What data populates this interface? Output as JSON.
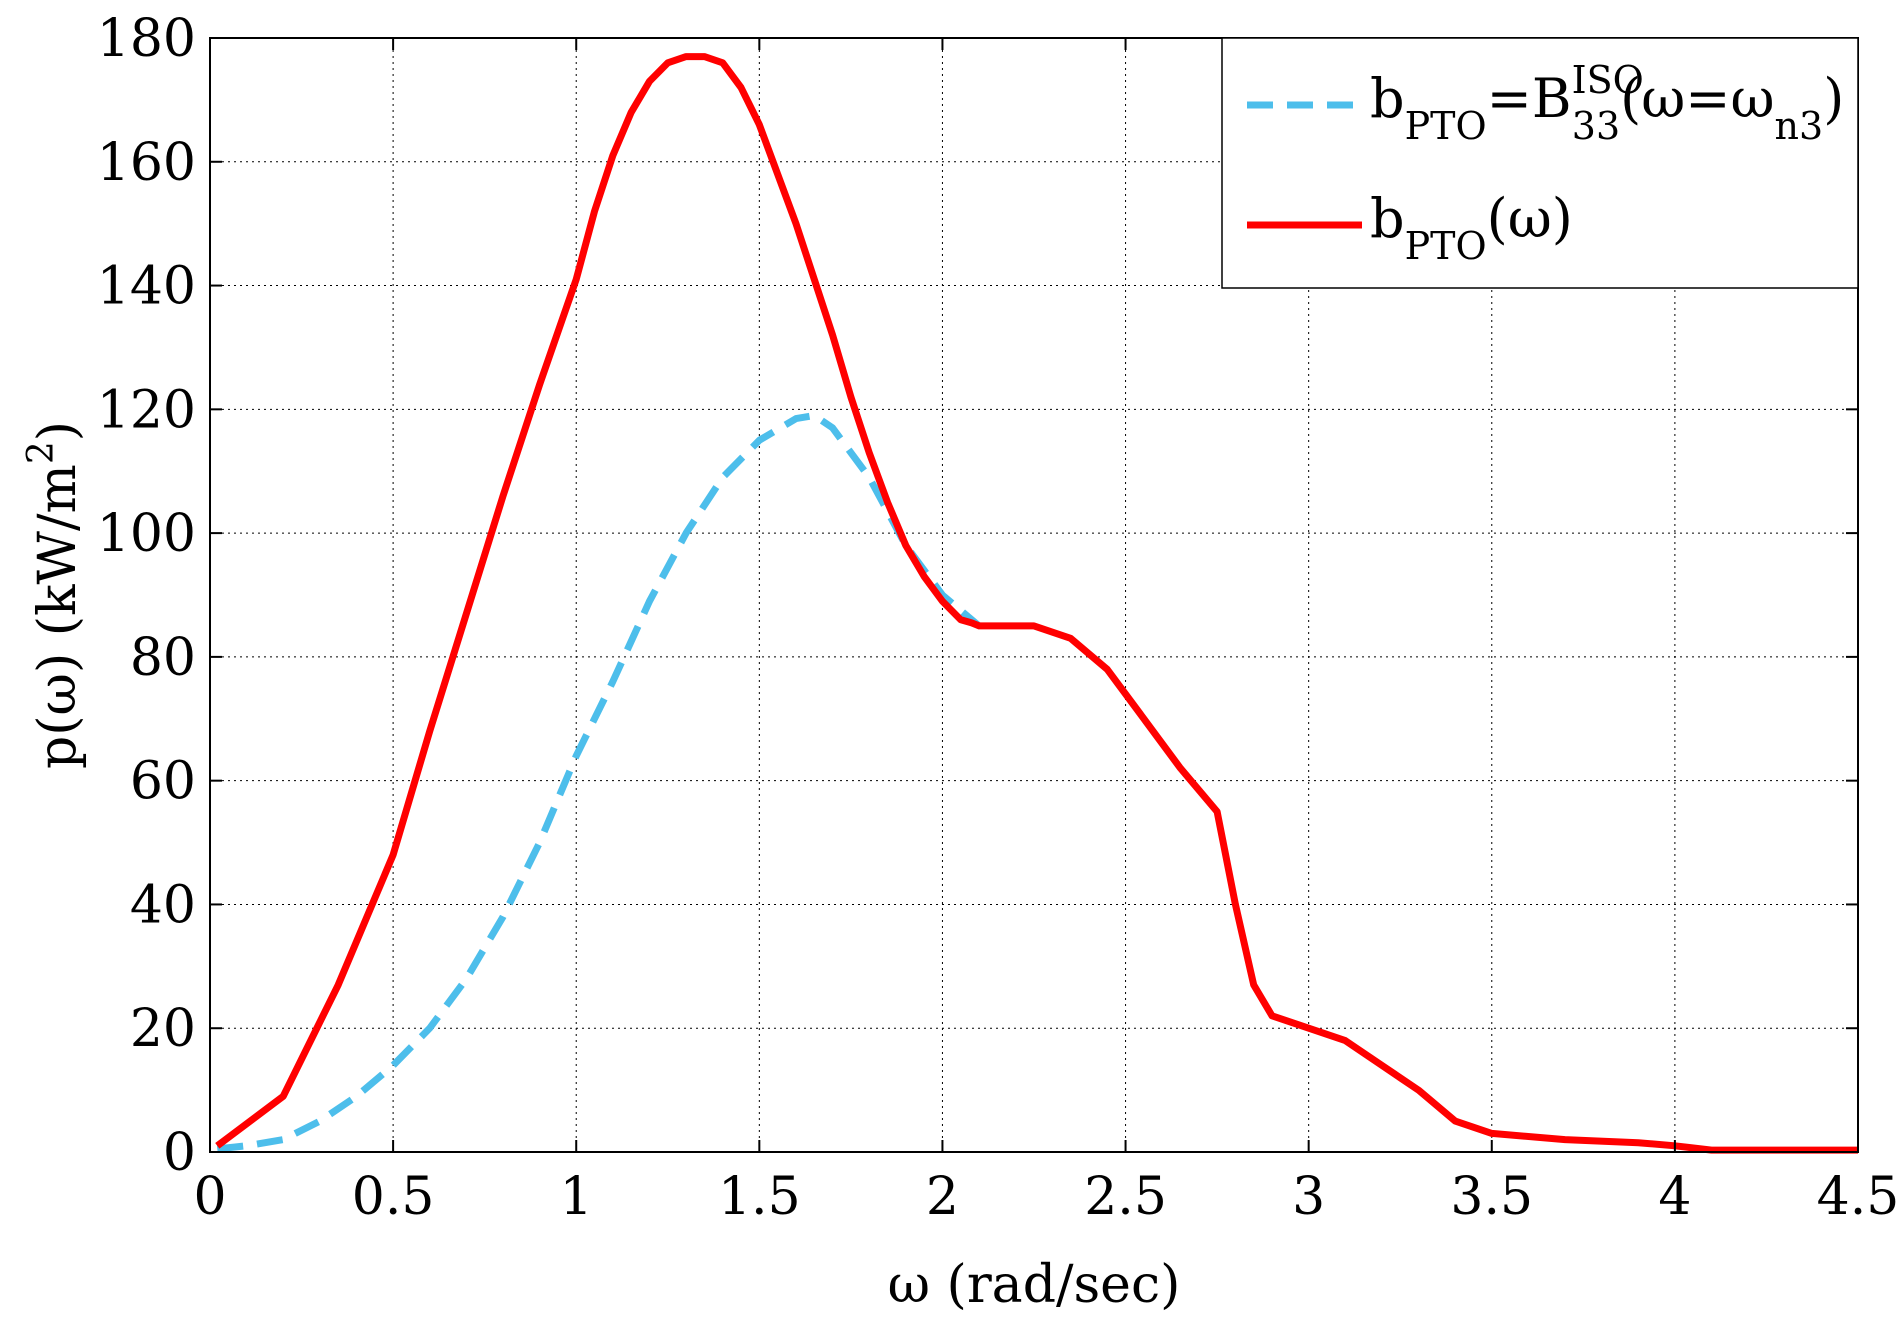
{
  "chart_data": {
    "type": "line",
    "xlabel": "ω (rad/sec)",
    "ylabel": "p(ω) (kW/m²)",
    "ylabel_parts": {
      "main": "p(ω) (kW/m",
      "sup": "2",
      "close": ")"
    },
    "xlim": [
      0,
      4.5
    ],
    "ylim": [
      0,
      180
    ],
    "xticks": [
      0,
      0.5,
      1,
      1.5,
      2,
      2.5,
      3,
      3.5,
      4,
      4.5
    ],
    "xtick_labels": [
      "0",
      "0.5",
      "1",
      "1.5",
      "2",
      "2.5",
      "3",
      "3.5",
      "4",
      "4.5"
    ],
    "yticks": [
      0,
      20,
      40,
      60,
      80,
      100,
      120,
      140,
      160,
      180
    ],
    "ytick_labels": [
      "0",
      "20",
      "40",
      "60",
      "80",
      "100",
      "120",
      "140",
      "160",
      "180"
    ],
    "grid": true,
    "legend_placement": "top-right",
    "series": [
      {
        "name": "b_PTO=B_33^ISO(ω=ω_n3)",
        "legend_parts": [
          {
            "t": "b",
            "s": "n"
          },
          {
            "t": "PTO",
            "s": "sub"
          },
          {
            "t": "=B",
            "s": "n"
          },
          {
            "t": "ISO",
            "s": "sup"
          },
          {
            "t": "33",
            "s": "sub2"
          },
          {
            "t": "(ω=ω",
            "s": "n"
          },
          {
            "t": "n3",
            "s": "sub"
          },
          {
            "t": ")",
            "s": "n"
          }
        ],
        "color": "#4dbeeb",
        "style": "dashed",
        "x": [
          0.02,
          0.1,
          0.2,
          0.3,
          0.4,
          0.5,
          0.6,
          0.7,
          0.8,
          0.9,
          1.0,
          1.1,
          1.2,
          1.3,
          1.4,
          1.5,
          1.6,
          1.65,
          1.7,
          1.8,
          1.9,
          2.0,
          2.1
        ],
        "y": [
          0.5,
          1,
          2,
          5,
          9,
          14,
          20,
          28,
          38,
          50,
          64,
          76,
          89,
          100,
          109,
          115,
          118.5,
          119,
          117,
          109,
          98,
          90,
          85
        ]
      },
      {
        "name": "b_PTO(ω)",
        "legend_parts": [
          {
            "t": "b",
            "s": "n"
          },
          {
            "t": "PTO",
            "s": "sub"
          },
          {
            "t": "(ω)",
            "s": "n"
          }
        ],
        "color": "#ff0000",
        "style": "solid",
        "x": [
          0.02,
          0.2,
          0.35,
          0.5,
          0.6,
          0.7,
          0.8,
          0.9,
          1.0,
          1.05,
          1.1,
          1.15,
          1.2,
          1.25,
          1.3,
          1.35,
          1.4,
          1.45,
          1.5,
          1.6,
          1.7,
          1.75,
          1.8,
          1.85,
          1.9,
          1.95,
          2.0,
          2.05,
          2.08,
          2.1,
          2.25,
          2.35,
          2.45,
          2.55,
          2.65,
          2.75,
          2.8,
          2.85,
          2.9,
          3.0,
          3.1,
          3.2,
          3.3,
          3.4,
          3.5,
          3.7,
          3.9,
          4.0,
          4.1,
          4.5
        ],
        "y": [
          1,
          9,
          27,
          48,
          68,
          87,
          106,
          124,
          141,
          152,
          161,
          168,
          173,
          176,
          177,
          177,
          176,
          172,
          166,
          150,
          132,
          122,
          113,
          105,
          98,
          93,
          89,
          86,
          85.5,
          85,
          85,
          83,
          78,
          70,
          62,
          55,
          40,
          27,
          22,
          20,
          18,
          14,
          10,
          5,
          3,
          2,
          1.5,
          1,
          0.3,
          0.3
        ]
      }
    ]
  }
}
